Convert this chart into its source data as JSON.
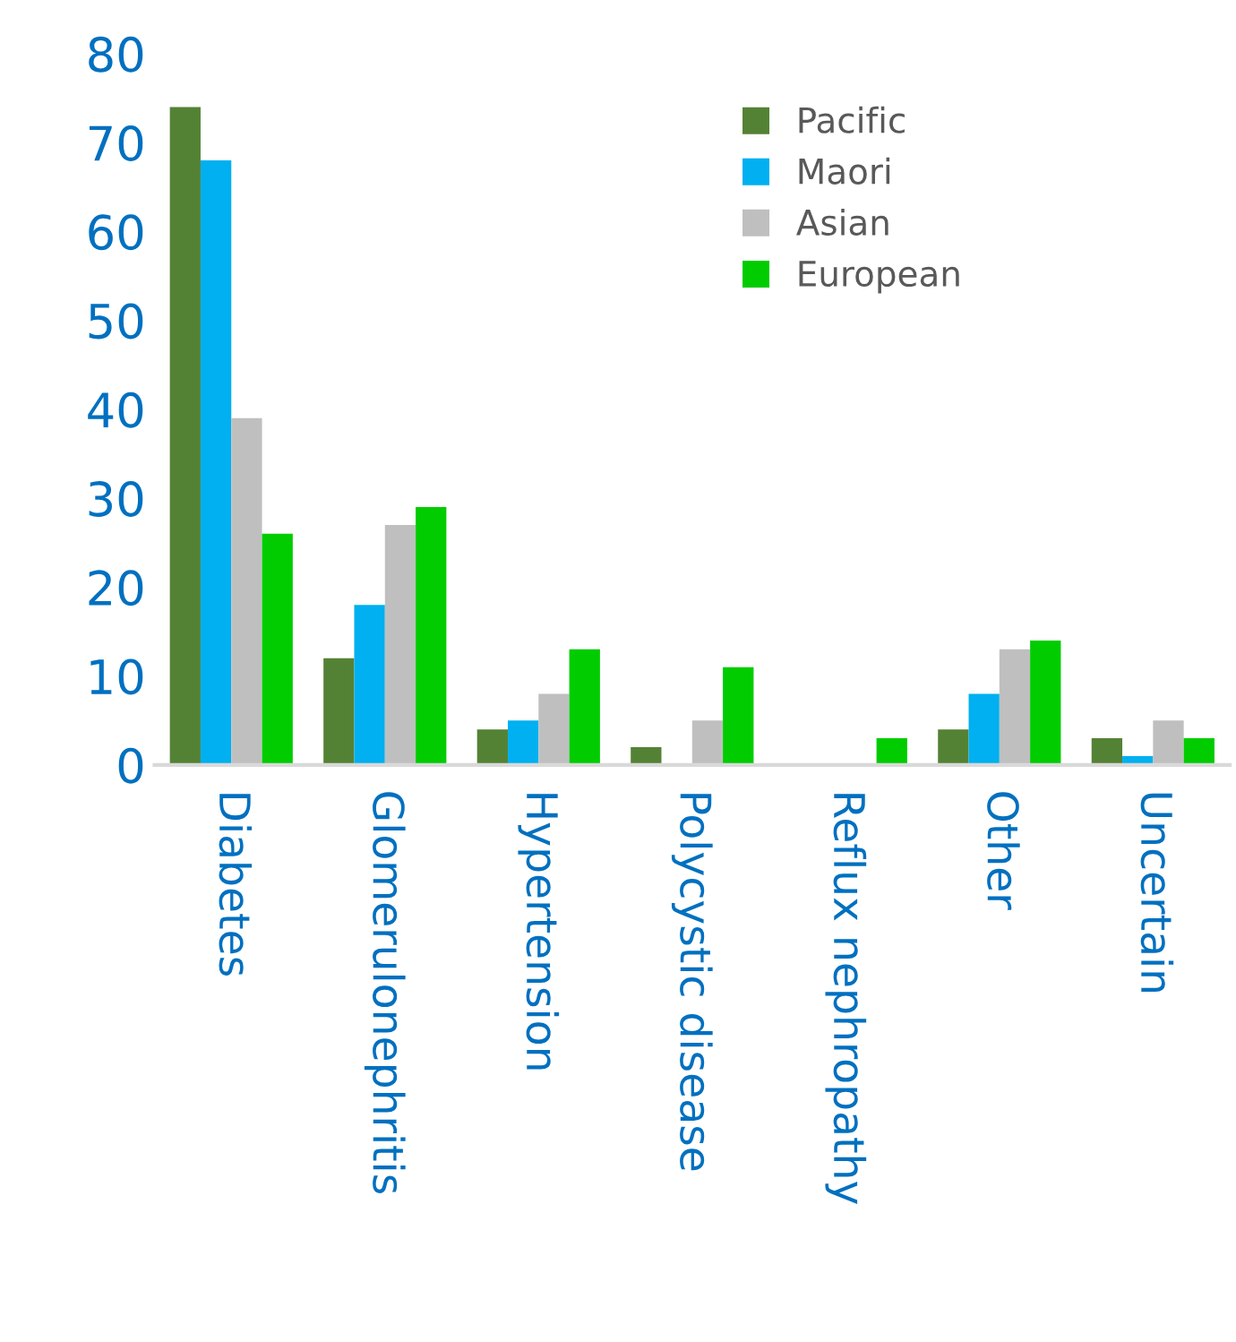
{
  "chart_data": {
    "type": "bar",
    "categories": [
      "Diabetes",
      "Glomerulonephritis",
      "Hypertension",
      "Polycystic disease",
      "Reflux nephropathy",
      "Other",
      "Uncertain"
    ],
    "series": [
      {
        "name": "Pacific",
        "color": "#548235",
        "values": [
          74,
          12,
          4,
          2,
          0,
          4,
          3
        ]
      },
      {
        "name": "Maori",
        "color": "#00b0f0",
        "values": [
          68,
          18,
          5,
          0,
          0,
          8,
          1
        ]
      },
      {
        "name": "Asian",
        "color": "#bfbfbf",
        "values": [
          39,
          27,
          8,
          5,
          0,
          13,
          5
        ]
      },
      {
        "name": "European",
        "color": "#00cc00",
        "values": [
          26,
          29,
          13,
          11,
          3,
          14,
          3
        ]
      }
    ],
    "ylim": [
      0,
      80
    ],
    "yticks": [
      0,
      10,
      20,
      30,
      40,
      50,
      60,
      70,
      80
    ],
    "grid": false,
    "legend": "top right"
  }
}
